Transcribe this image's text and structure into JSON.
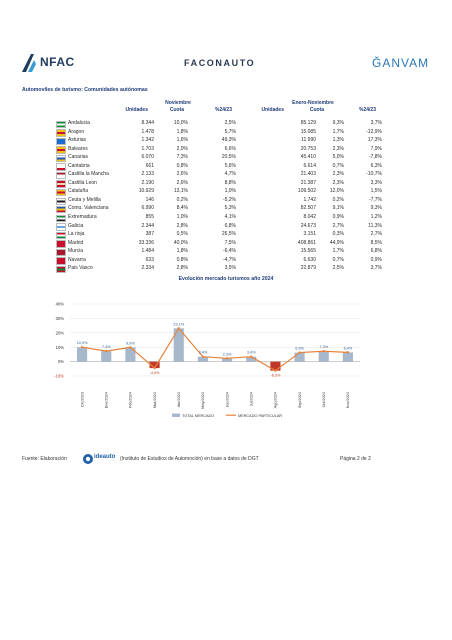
{
  "header": {
    "anfac_logo": "NFAC",
    "faconauto_logo": "FACONAUTO",
    "ganvam_logo": "ĞANVAM"
  },
  "section_title": "Automoviles de turismo: Comunidades autónomas",
  "table": {
    "group1": "Noviembre",
    "group2": "Enero-Noviembre",
    "col_headers": [
      "Unidades",
      "Cuota",
      "%24/23",
      "Unidades",
      "Cuota",
      "%24/23"
    ],
    "rows": [
      {
        "name": "Andalucia",
        "flag": [
          "#0a8a3a",
          "#ffffff",
          "#0a8a3a"
        ],
        "cells": [
          "8.344",
          "10,0%",
          "2,5%",
          "85.129",
          "9,3%",
          "3,7%"
        ]
      },
      {
        "name": "Aragon",
        "flag": [
          "#f4c20d",
          "#c8102e",
          "#f4c20d"
        ],
        "cells": [
          "1.478",
          "1,8%",
          "5,7%",
          "15.085",
          "1,7%",
          "-12,9%"
        ]
      },
      {
        "name": "Asturias",
        "flag": [
          "#1e6bd6",
          "#1e6bd6",
          "#1e6bd6"
        ],
        "cells": [
          "1.342",
          "1,6%",
          "49,3%",
          "11.990",
          "1,3%",
          "17,3%"
        ]
      },
      {
        "name": "Baleares",
        "flag": [
          "#f4c20d",
          "#c8102e",
          "#f4c20d"
        ],
        "cells": [
          "1.703",
          "2,0%",
          "6,6%",
          "20.753",
          "2,3%",
          "7,9%"
        ]
      },
      {
        "name": "Canarias",
        "flag": [
          "#ffffff",
          "#1e56b8",
          "#f4c20d"
        ],
        "cells": [
          "6.070",
          "7,3%",
          "20,5%",
          "45.410",
          "5,0%",
          "-7,8%"
        ]
      },
      {
        "name": "Cantabria",
        "flag": [
          "#ffffff",
          "#ffffff",
          "#c8102e"
        ],
        "cells": [
          "661",
          "0,8%",
          "5,6%",
          "6.614",
          "0,7%",
          "6,3%"
        ]
      },
      {
        "name": "Castilla la Mancha",
        "flag": [
          "#a6192e",
          "#ffffff",
          "#ffffff"
        ],
        "cells": [
          "2.133",
          "2,6%",
          "4,7%",
          "21.403",
          "2,3%",
          "-10,7%"
        ]
      },
      {
        "name": "Castilla Leon",
        "flag": [
          "#c8102e",
          "#f0d9a8",
          "#c8102e"
        ],
        "cells": [
          "2.190",
          "2,6%",
          "8,8%",
          "21.387",
          "2,3%",
          "3,3%"
        ]
      },
      {
        "name": "Cataluña",
        "flag": [
          "#f4c20d",
          "#c8102e",
          "#f4c20d"
        ],
        "cells": [
          "10.929",
          "13,1%",
          "1,0%",
          "109.502",
          "12,0%",
          "1,5%"
        ]
      },
      {
        "name": "Ceuta y Melilla",
        "flag": [
          "#ffffff",
          "#1b1b1b",
          "#ffffff"
        ],
        "cells": [
          "146",
          "0,2%",
          "-5,2%",
          "1.742",
          "0,2%",
          "-7,7%"
        ]
      },
      {
        "name": "Comu. Valenciana",
        "flag": [
          "#1e56b8",
          "#f4c20d",
          "#c8102e"
        ],
        "cells": [
          "6.990",
          "8,4%",
          "5,3%",
          "82.507",
          "9,1%",
          "9,3%"
        ]
      },
      {
        "name": "Extremadura",
        "flag": [
          "#0a8a3a",
          "#ffffff",
          "#1b1b1b"
        ],
        "cells": [
          "855",
          "1,0%",
          "4,1%",
          "8.042",
          "0,9%",
          "1,2%"
        ]
      },
      {
        "name": "Galicia",
        "flag": [
          "#ffffff",
          "#6aa6e0",
          "#ffffff"
        ],
        "cells": [
          "2.344",
          "2,8%",
          "6,8%",
          "24.673",
          "2,7%",
          "11,3%"
        ]
      },
      {
        "name": "La rioja",
        "flag": [
          "#c8102e",
          "#ffffff",
          "#0a8a3a"
        ],
        "cells": [
          "387",
          "0,5%",
          "26,5%",
          "3.151",
          "0,3%",
          "2,7%"
        ]
      },
      {
        "name": "Madrid",
        "flag": [
          "#c8102e",
          "#c8102e",
          "#c8102e"
        ],
        "cells": [
          "33.336",
          "40,0%",
          "7,5%",
          "408.861",
          "44,9%",
          "8,5%"
        ]
      },
      {
        "name": "Murcia",
        "flag": [
          "#a6192e",
          "#a6192e",
          "#a6192e"
        ],
        "cells": [
          "1.484",
          "1,8%",
          "-6,4%",
          "15.565",
          "1,7%",
          "6,8%"
        ]
      },
      {
        "name": "Navarra",
        "flag": [
          "#c8102e",
          "#c8102e",
          "#c8102e"
        ],
        "cells": [
          "633",
          "0,8%",
          "-4,7%",
          "6.630",
          "0,7%",
          "0,9%"
        ]
      },
      {
        "name": "Pais Vasco",
        "flag": [
          "#c8102e",
          "#0a8a3a",
          "#c8102e"
        ],
        "cells": [
          "2.334",
          "2,8%",
          "3,5%",
          "22.879",
          "2,5%",
          "3,7%"
        ]
      }
    ]
  },
  "chart_data": {
    "type": "bar",
    "title": "Evolución mercado turismos año 2024",
    "categories": [
      "Dic/2023",
      "Ene/2024",
      "Feb/2024",
      "Mar/2024",
      "Abr/2024",
      "May/2024",
      "Jun/2024",
      "Jul/2024",
      "Ago/2024",
      "Sep/2024",
      "Oct/2024",
      "Nov/2024"
    ],
    "series": [
      {
        "name": "TOTAL MERCADO",
        "kind": "bar",
        "values": [
          10.0,
          7.3,
          9.9,
          -4.5,
          23.1,
          3.4,
          2.3,
          3.4,
          -6.3,
          6.3,
          7.2,
          6.4
        ]
      },
      {
        "name": "MERCADO PARTICULAR",
        "kind": "line",
        "values": [
          10.0,
          7.3,
          9.9,
          -4.5,
          23.1,
          3.4,
          2.3,
          3.4,
          -6.3,
          6.3,
          7.2,
          6.4
        ]
      }
    ],
    "data_labels": [
      "10,0%",
      "7,3%",
      "9,9%",
      "-4,5%",
      "23,1%",
      "3,4%",
      "2,3%",
      "3,4%",
      "-6,3%",
      "6,3%",
      "7,2%",
      "6,4%"
    ],
    "y_ticks": [
      "40%",
      "30%",
      "20%",
      "10%",
      "0%",
      "-10%"
    ],
    "ylim": [
      -10,
      40
    ],
    "grid": true,
    "legend": "bottom",
    "colors": {
      "bar": "#a7b8cc",
      "bar_negative": "#c0392b",
      "line": "#e8823a"
    }
  },
  "footer": {
    "source_label": "Fuente: Elaboración",
    "source_logo": "ideauto",
    "source_text": "(Instituto de Estudios de Automoción) en base a datos de DGT",
    "page": "Página 2 de 2"
  }
}
